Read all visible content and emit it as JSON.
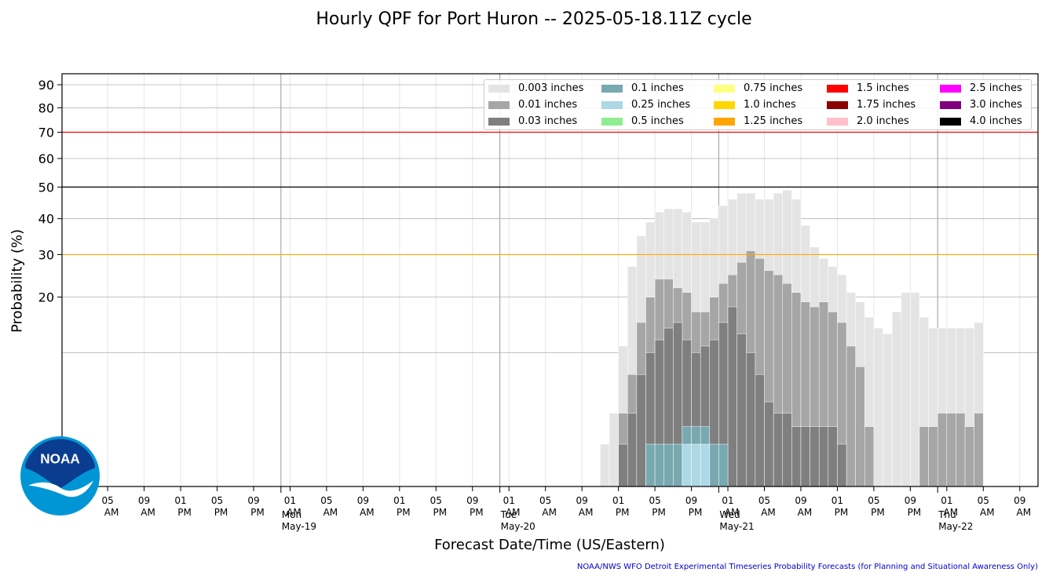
{
  "chart_data": {
    "type": "bar",
    "title": "Hourly QPF for Port Huron -- 2025-05-18.11Z cycle",
    "xlabel": "Forecast Date/Time (US/Eastern)",
    "ylabel": "Probability (%)",
    "y_scale": "sqrt",
    "ylim": [
      0,
      95
    ],
    "yticks": [
      20,
      30,
      40,
      50,
      60,
      70,
      80,
      90
    ],
    "threshold_lines": [
      {
        "value": 30,
        "color": "#ffa500"
      },
      {
        "value": 50,
        "color": "#000000"
      },
      {
        "value": 70,
        "color": "#ff0000"
      }
    ],
    "x_start_hour": 0,
    "x_end_hour": 107,
    "x_tick_hours": [
      5,
      9,
      13,
      17,
      21,
      25,
      29,
      33,
      37,
      41,
      45,
      49,
      53,
      57,
      61,
      65,
      69,
      73,
      77,
      81,
      85,
      89,
      93,
      97,
      101,
      105
    ],
    "x_tick_time": [
      "05",
      "09",
      "01",
      "05",
      "09",
      "01",
      "05",
      "09",
      "01",
      "05",
      "09",
      "01",
      "05",
      "09",
      "01",
      "05",
      "09",
      "01",
      "05",
      "09",
      "01",
      "05",
      "09",
      "01",
      "05",
      "09"
    ],
    "x_tick_ampm": [
      "AM",
      "AM",
      "PM",
      "PM",
      "PM",
      "AM",
      "AM",
      "AM",
      "PM",
      "PM",
      "PM",
      "AM",
      "AM",
      "AM",
      "PM",
      "PM",
      "PM",
      "AM",
      "AM",
      "AM",
      "PM",
      "PM",
      "PM",
      "AM",
      "AM",
      "AM"
    ],
    "day_labels": [
      {
        "hour": 24,
        "day": "Mon",
        "date": "May-19"
      },
      {
        "hour": 48,
        "day": "Tue",
        "date": "May-20"
      },
      {
        "hour": 72,
        "day": "Wed",
        "date": "May-21"
      },
      {
        "hour": 96,
        "day": "Thu",
        "date": "May-22"
      }
    ],
    "series": [
      {
        "name": "0.003 inches",
        "color": "#e4e4e4",
        "start_hour": 59,
        "values": [
          1,
          3,
          11,
          27,
          35,
          39,
          42,
          43,
          43,
          42,
          39,
          39,
          40,
          44,
          46,
          48,
          48,
          46,
          46,
          48,
          49,
          46,
          38,
          32,
          29,
          27,
          25,
          21,
          19,
          16,
          14,
          13,
          17,
          21,
          21,
          16,
          14,
          14,
          14,
          14,
          14,
          15
        ]
      },
      {
        "name": "0.01 inches",
        "color": "#a6a6a6",
        "start_hour": 60,
        "values": [
          0,
          3,
          7,
          15,
          20,
          24,
          24,
          22,
          21,
          17,
          17,
          20,
          23,
          25,
          28,
          31,
          29,
          26,
          25,
          23,
          21,
          19,
          18,
          19,
          17,
          15,
          11,
          8,
          2,
          0,
          0,
          0,
          0,
          0,
          2,
          2,
          3,
          3,
          3,
          2,
          3
        ]
      },
      {
        "name": "0.03 inches",
        "color": "#7f7f7f",
        "start_hour": 60,
        "values": [
          0,
          1,
          3,
          7,
          10,
          12,
          14,
          15,
          12,
          10,
          11,
          12,
          15,
          18,
          13,
          10,
          7,
          4,
          3,
          3,
          2,
          2,
          2,
          2,
          2,
          1,
          0,
          0
        ]
      },
      {
        "name": "0.1 inches",
        "color": "#78a8b0",
        "start_hour": 64,
        "values": [
          1,
          1,
          1,
          1,
          2,
          2,
          2,
          1,
          1,
          0
        ]
      },
      {
        "name": "0.25 inches",
        "color": "#add8e6",
        "start_hour": 64,
        "values": [
          0,
          0,
          0,
          0,
          1,
          1,
          1,
          0
        ]
      },
      {
        "name": "0.5 inches",
        "color": "#90ee90",
        "values": []
      },
      {
        "name": "0.75 inches",
        "color": "#ffff80",
        "values": []
      },
      {
        "name": "1.0 inches",
        "color": "#ffd700",
        "values": []
      },
      {
        "name": "1.25 inches",
        "color": "#ffa500",
        "values": []
      },
      {
        "name": "1.5 inches",
        "color": "#ff0000",
        "values": []
      },
      {
        "name": "1.75 inches",
        "color": "#8b0000",
        "values": []
      },
      {
        "name": "2.0 inches",
        "color": "#ffc0cb",
        "values": []
      },
      {
        "name": "2.5 inches",
        "color": "#ff00ff",
        "values": []
      },
      {
        "name": "3.0 inches",
        "color": "#800080",
        "values": []
      },
      {
        "name": "4.0 inches",
        "color": "#000000",
        "values": []
      }
    ],
    "grid": true,
    "legend_placement": "top-right"
  },
  "credit": "NOAA/NWS WFO Detroit Experimental Timeseries Probability Forecasts (for Planning and Situational Awareness Only)",
  "logo_text": "NOAA"
}
